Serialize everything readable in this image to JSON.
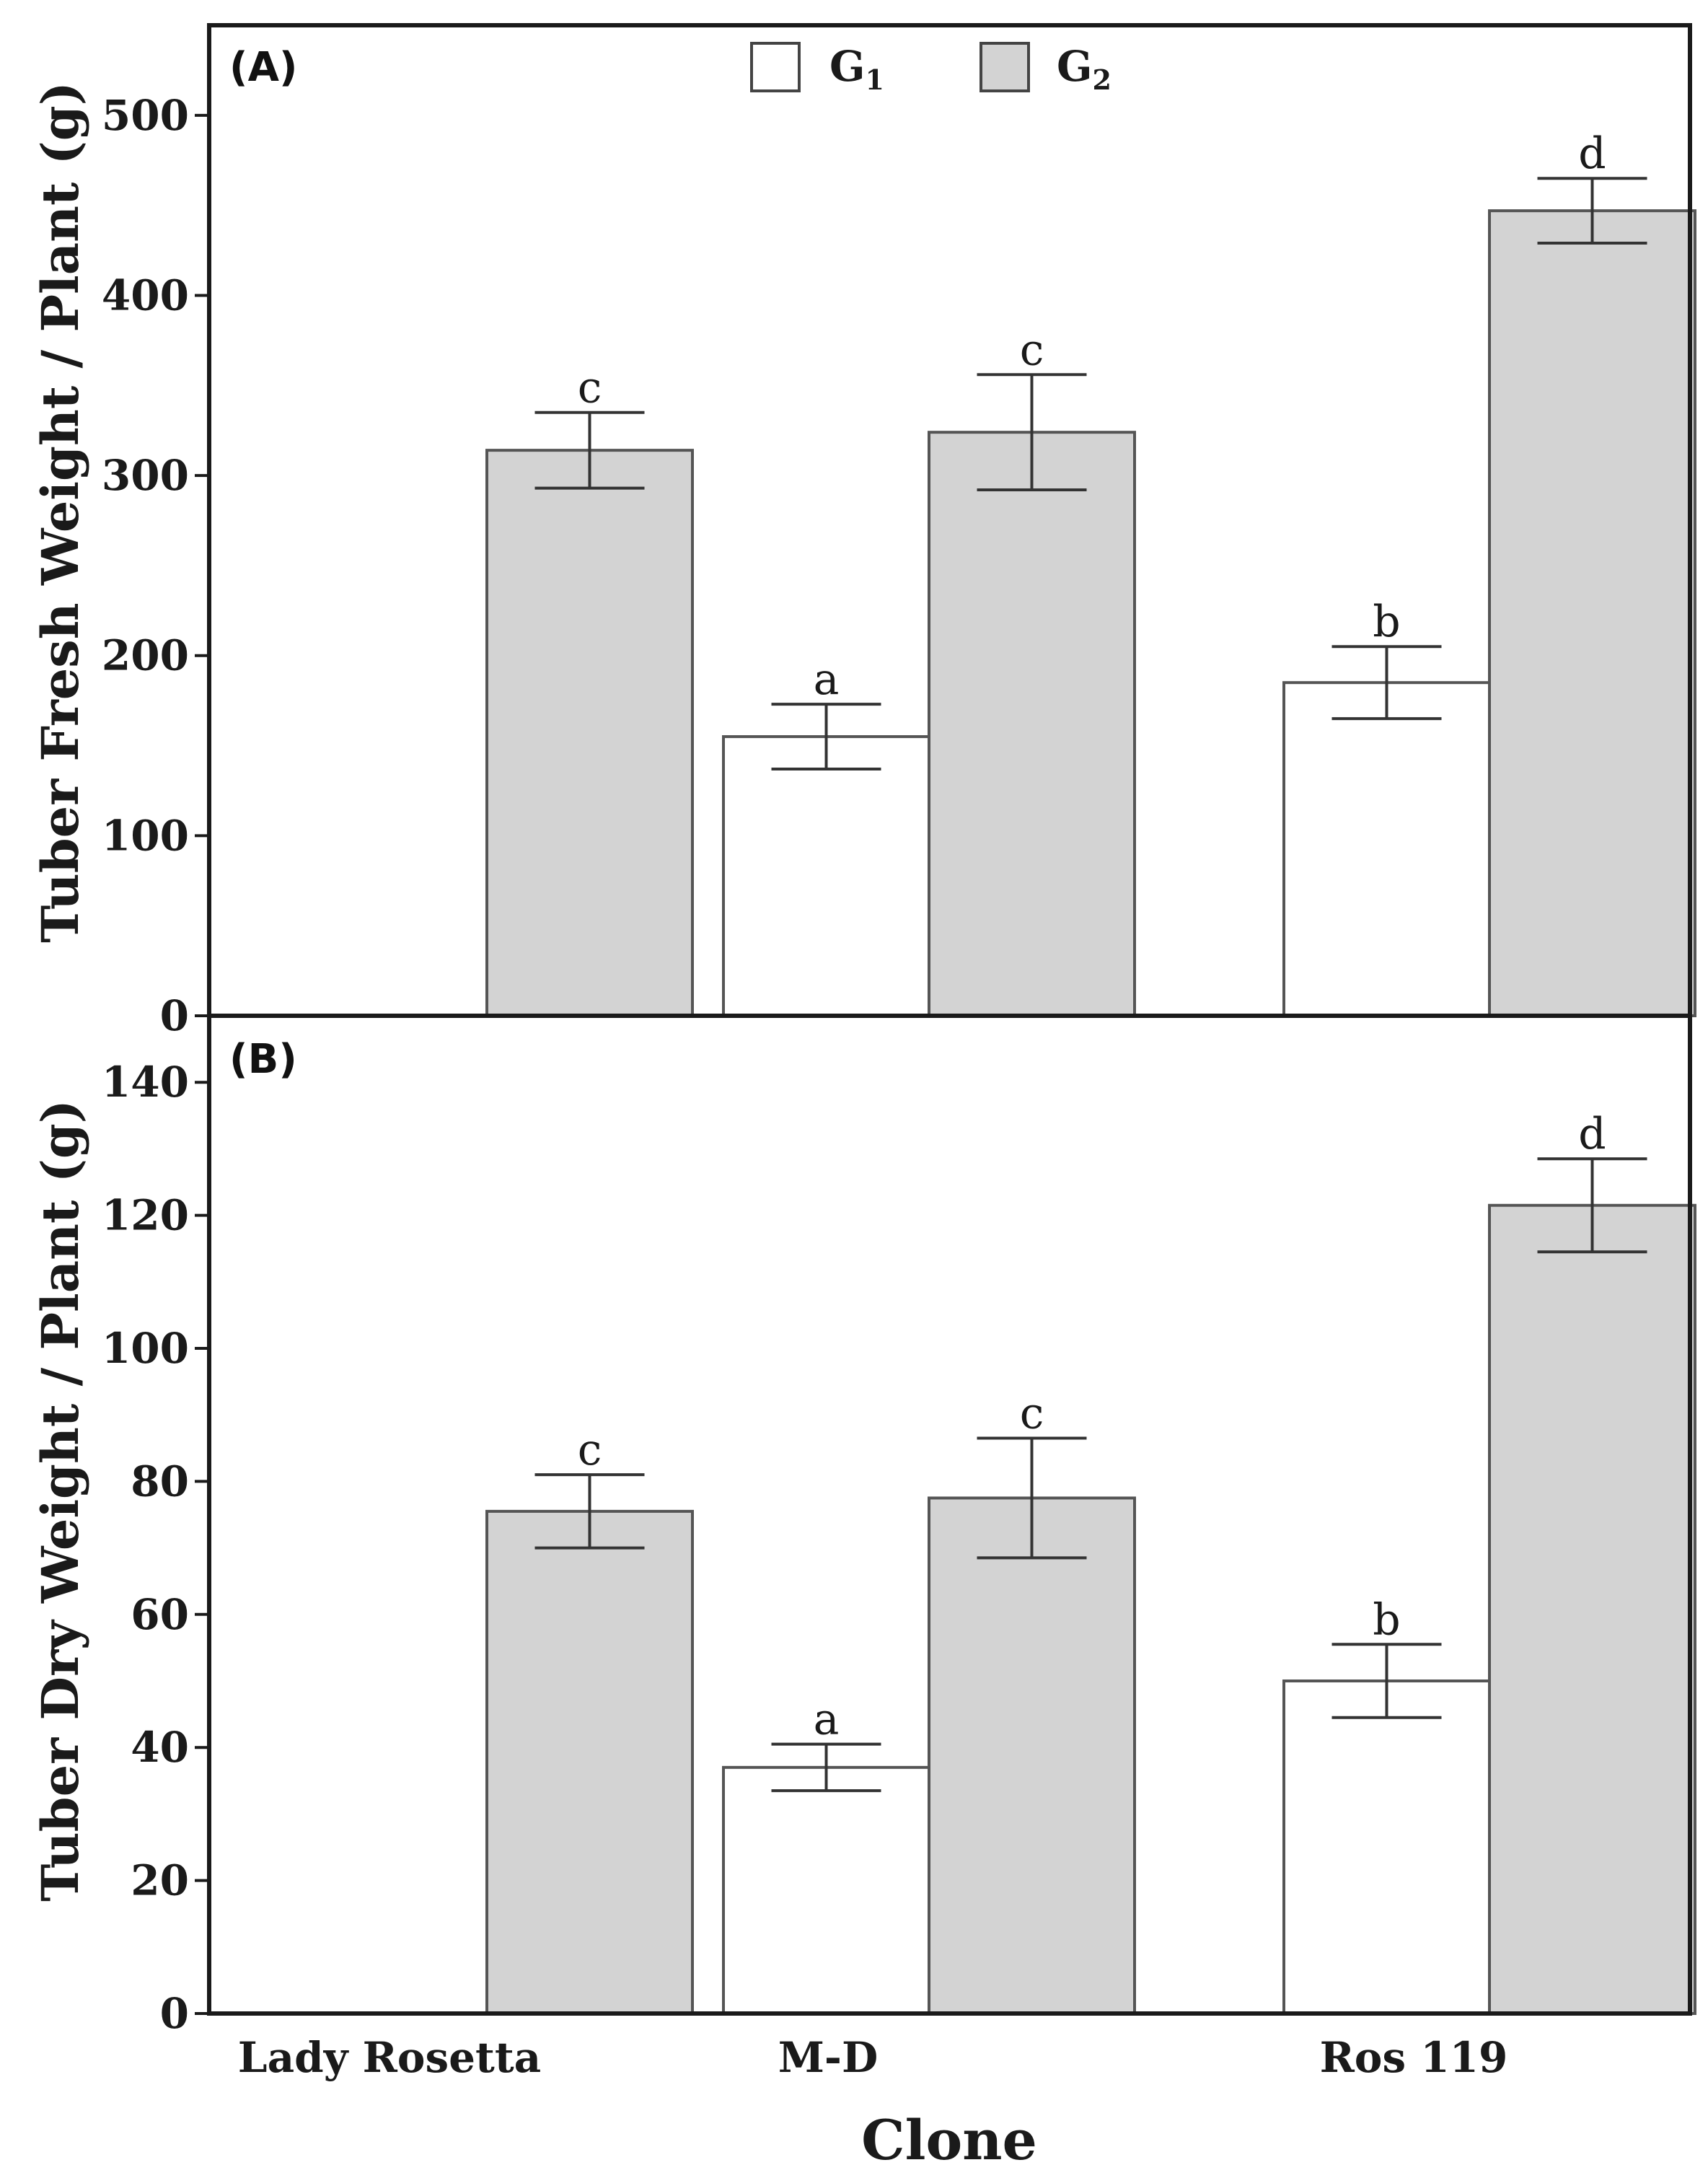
{
  "chart_data": [
    {
      "type": "bar",
      "panel_label": "(A)",
      "title": "",
      "categories": [
        "Lady Rosetta",
        "M-D",
        "Ros 119"
      ],
      "xlabel": "Clone",
      "ylabel": "Tuber Fresh Weight / Plant (g)",
      "ylim": [
        0,
        550
      ],
      "yticks": [
        0,
        100,
        200,
        300,
        400,
        500
      ],
      "grid": false,
      "series": [
        {
          "name": "G1",
          "color": "#ffffff",
          "values": [
            null,
            155,
            185
          ],
          "errors": [
            null,
            18,
            20
          ],
          "letters": [
            null,
            "a",
            "b"
          ]
        },
        {
          "name": "G2",
          "color": "#d3d3d3",
          "values": [
            314,
            324,
            447
          ],
          "errors": [
            21,
            32,
            18
          ],
          "letters": [
            "c",
            "c",
            "d"
          ]
        }
      ],
      "legend": {
        "position": "top-center",
        "entries": [
          {
            "base": "G",
            "sub": "1"
          },
          {
            "base": "G",
            "sub": "2"
          }
        ]
      }
    },
    {
      "type": "bar",
      "panel_label": "(B)",
      "title": "",
      "categories": [
        "Lady Rosetta",
        "M-D",
        "Ros 119"
      ],
      "xlabel": "Clone",
      "ylabel": "Tuber Dry Weight / Plant (g)",
      "ylim": [
        0,
        150
      ],
      "yticks": [
        0,
        20,
        40,
        60,
        80,
        100,
        120,
        140
      ],
      "grid": false,
      "series": [
        {
          "name": "G1",
          "color": "#ffffff",
          "values": [
            null,
            37,
            50
          ],
          "errors": [
            null,
            3.5,
            5.5
          ],
          "letters": [
            null,
            "a",
            "b"
          ]
        },
        {
          "name": "G2",
          "color": "#d3d3d3",
          "values": [
            75.5,
            77.5,
            121.5
          ],
          "errors": [
            5.5,
            9,
            7
          ],
          "letters": [
            "c",
            "c",
            "d"
          ]
        }
      ]
    }
  ]
}
